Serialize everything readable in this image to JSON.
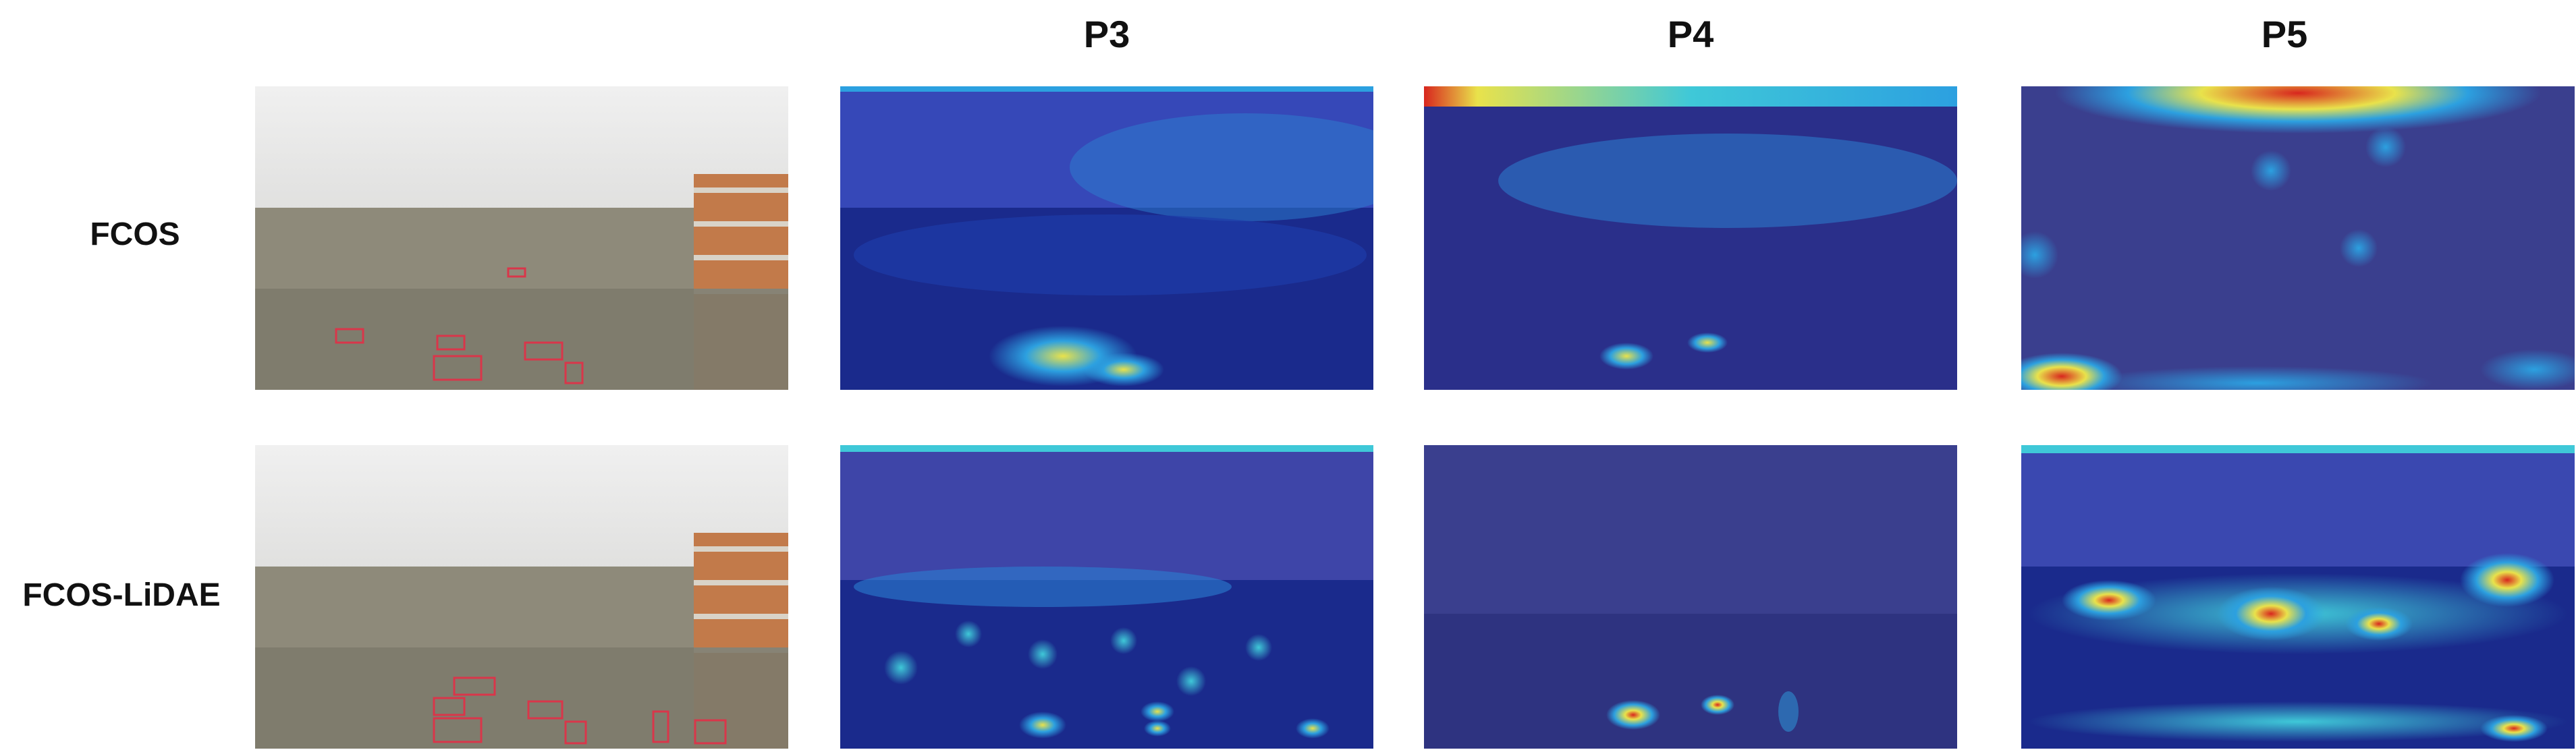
{
  "columns": [
    "P3",
    "P4",
    "P5"
  ],
  "rows": [
    {
      "label": "FCOS"
    },
    {
      "label": "FCOS-LiDAE"
    }
  ],
  "palette": {
    "sky": "#d9d9d9",
    "building": "#c27a4a",
    "trees": "#7d7a6b",
    "box": "#d9364a",
    "heat_low": "#1a2a8c",
    "heat_mid": "#2ca0e0",
    "heat_high": "#e9e24b",
    "heat_peak": "#d8261e"
  }
}
